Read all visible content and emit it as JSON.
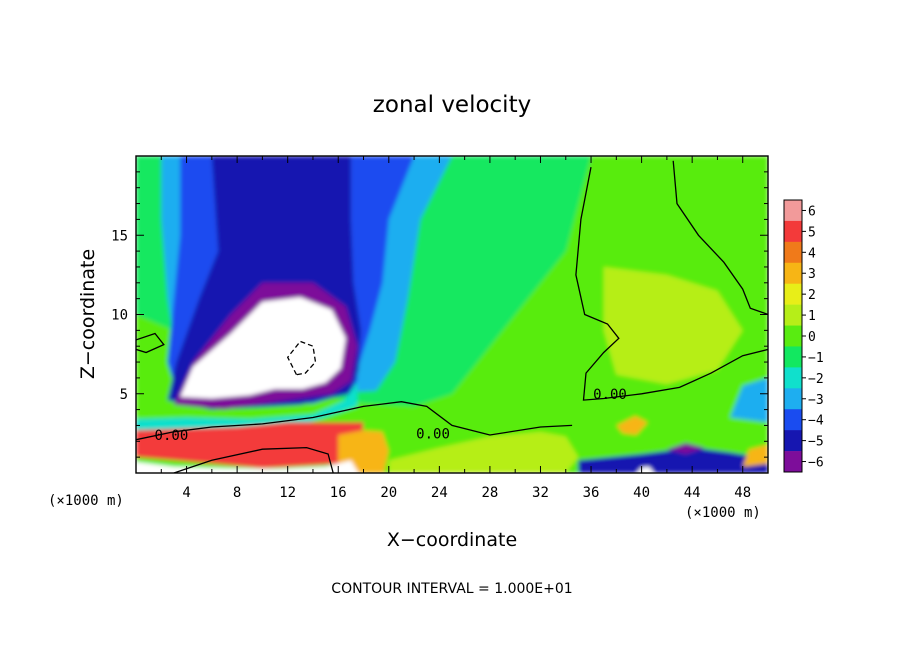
{
  "chart_data": {
    "type": "heatmap",
    "title": "zonal velocity",
    "xlabel": "X−coordinate",
    "ylabel": "Z−coordinate",
    "x_unit_left": "(×1000 m)",
    "x_unit_right": "(×1000 m)",
    "xlim": [
      0,
      50
    ],
    "ylim": [
      0,
      20
    ],
    "x_ticks": [
      4,
      8,
      12,
      16,
      20,
      24,
      28,
      32,
      36,
      40,
      44,
      48
    ],
    "x_tick_labels": [
      "4",
      "8",
      "12",
      "16",
      "20",
      "24",
      "28",
      "32",
      "36",
      "40",
      "44",
      "48"
    ],
    "y_ticks": [
      5,
      10,
      15
    ],
    "y_tick_labels": [
      "5",
      "10",
      "15"
    ],
    "colorbar": {
      "levels": [
        6,
        5,
        4,
        3,
        2,
        1,
        0,
        -1,
        -2,
        -3,
        -4,
        -5,
        -6
      ],
      "labels": [
        "6",
        "5",
        "4",
        "3",
        "2",
        "1",
        "0",
        "−1",
        "−2",
        "−3",
        "−4",
        "−5",
        "−6"
      ],
      "colors": [
        "#f29a9a",
        "#f33a3a",
        "#f07a1a",
        "#f7b515",
        "#e8ee18",
        "#b6ee18",
        "#59ec11",
        "#12e860",
        "#10e0cc",
        "#1eaef0",
        "#1a4cf0",
        "#1616b0",
        "#7d0d9a"
      ]
    },
    "contour_labels": [
      {
        "text": "0.00",
        "x": 2.8,
        "z": 2.4
      },
      {
        "text": "0.00",
        "x": 23.5,
        "z": 2.5
      },
      {
        "text": "0.00",
        "x": 37.5,
        "z": 5.0
      }
    ],
    "contours": [
      {
        "level": 0,
        "style": "solid",
        "points": [
          [
            0,
            2.1
          ],
          [
            3,
            2.6
          ],
          [
            6,
            2.9
          ],
          [
            10,
            3.1
          ],
          [
            14,
            3.5
          ],
          [
            18,
            4.2
          ],
          [
            21,
            4.5
          ],
          [
            23,
            4.2
          ],
          [
            25,
            3.0
          ],
          [
            28,
            2.4
          ],
          [
            32,
            2.9
          ],
          [
            34.5,
            3.0
          ]
        ]
      },
      {
        "level": 0,
        "style": "solid",
        "points": [
          [
            0,
            8.4
          ],
          [
            1.5,
            8.8
          ],
          [
            2.2,
            8.1
          ],
          [
            0.8,
            7.6
          ],
          [
            0,
            7.8
          ]
        ]
      },
      {
        "level": 0,
        "style": "solid",
        "points": [
          [
            36,
            19.3
          ],
          [
            35.2,
            16
          ],
          [
            34.8,
            12.5
          ],
          [
            35.5,
            10
          ],
          [
            37.3,
            9.4
          ],
          [
            38.2,
            8.5
          ],
          [
            37,
            7.6
          ],
          [
            35.6,
            6.3
          ],
          [
            35.4,
            4.6
          ],
          [
            37,
            4.7
          ],
          [
            40,
            5.0
          ],
          [
            43,
            5.4
          ],
          [
            45.5,
            6.3
          ],
          [
            48,
            7.4
          ],
          [
            50,
            7.8
          ]
        ]
      },
      {
        "level": 0,
        "style": "solid",
        "points": [
          [
            42.5,
            19.7
          ],
          [
            42.8,
            17
          ],
          [
            44.5,
            15
          ],
          [
            46.5,
            13.3
          ],
          [
            48,
            11.6
          ],
          [
            48.6,
            10.4
          ],
          [
            50,
            10.0
          ]
        ]
      },
      {
        "level": 10,
        "style": "solid",
        "points": [
          [
            3,
            0
          ],
          [
            6,
            0.8
          ],
          [
            10,
            1.5
          ],
          [
            13.5,
            1.6
          ],
          [
            15.2,
            1.2
          ],
          [
            15.6,
            0
          ]
        ]
      },
      {
        "level": -10,
        "style": "dashed",
        "points": [
          [
            12.7,
            6.2
          ],
          [
            12,
            7.3
          ],
          [
            13,
            8.3
          ],
          [
            14,
            8.0
          ],
          [
            14.2,
            7.0
          ],
          [
            13.4,
            6.3
          ],
          [
            12.7,
            6.2
          ]
        ]
      }
    ],
    "regions": [
      {
        "value": 0.3,
        "points": [
          [
            0,
            20
          ],
          [
            50,
            20
          ],
          [
            50,
            0
          ],
          [
            0,
            0
          ]
        ]
      },
      {
        "value": -1.4,
        "points": [
          [
            0,
            20
          ],
          [
            36,
            20
          ],
          [
            34,
            14
          ],
          [
            30,
            10
          ],
          [
            27,
            7
          ],
          [
            25,
            5
          ],
          [
            22,
            4.2
          ],
          [
            18,
            4.4
          ],
          [
            14,
            5.0
          ],
          [
            8,
            7.0
          ],
          [
            3,
            9.0
          ],
          [
            0,
            10
          ]
        ]
      },
      {
        "value": 1.0,
        "points": [
          [
            37,
            13
          ],
          [
            42,
            12.5
          ],
          [
            46,
            11.5
          ],
          [
            48,
            9
          ],
          [
            46,
            6.5
          ],
          [
            42,
            5.6
          ],
          [
            38,
            6.2
          ],
          [
            37,
            9
          ]
        ]
      },
      {
        "value": -2.6,
        "points": [
          [
            2,
            20
          ],
          [
            25,
            20
          ],
          [
            22.5,
            16
          ],
          [
            21.5,
            11
          ],
          [
            20.5,
            7
          ],
          [
            19,
            5.2
          ],
          [
            15,
            5.0
          ],
          [
            8,
            6.5
          ],
          [
            3.5,
            6
          ],
          [
            2.5,
            11
          ],
          [
            2,
            16
          ]
        ]
      },
      {
        "value": -3.7,
        "points": [
          [
            3.5,
            20
          ],
          [
            22,
            20
          ],
          [
            20,
            16
          ],
          [
            19.5,
            12
          ],
          [
            18.5,
            9
          ],
          [
            17.5,
            6.5
          ],
          [
            17.5,
            5.2
          ],
          [
            14,
            4.4
          ],
          [
            8,
            4.2
          ],
          [
            3.5,
            4.4
          ],
          [
            2.5,
            7
          ],
          [
            3,
            11
          ],
          [
            3.5,
            15
          ]
        ]
      },
      {
        "value": -4.7,
        "points": [
          [
            6,
            20
          ],
          [
            17,
            20
          ],
          [
            17,
            16
          ],
          [
            17.2,
            12
          ],
          [
            17.8,
            9
          ],
          [
            17.6,
            6.5
          ],
          [
            17,
            5.0
          ],
          [
            13,
            4.3
          ],
          [
            6,
            4.0
          ],
          [
            2.5,
            4.6
          ],
          [
            3.2,
            7
          ],
          [
            5,
            11
          ],
          [
            6.5,
            14
          ]
        ]
      },
      {
        "value": -5.6,
        "points": [
          [
            3,
            4.3
          ],
          [
            4.5,
            7
          ],
          [
            7.5,
            10
          ],
          [
            10,
            12.0
          ],
          [
            14,
            12.0
          ],
          [
            16.6,
            10.5
          ],
          [
            17.5,
            8
          ],
          [
            17,
            5.8
          ],
          [
            15.5,
            5.0
          ],
          [
            11,
            4.5
          ],
          [
            7,
            4.0
          ]
        ]
      },
      {
        "value": 8,
        "points": [
          [
            3.5,
            4.8
          ],
          [
            4.5,
            6.7
          ],
          [
            7.5,
            8.8
          ],
          [
            10,
            10.8
          ],
          [
            13,
            11.1
          ],
          [
            15.5,
            10.3
          ],
          [
            16.6,
            8.5
          ],
          [
            16.2,
            6.6
          ],
          [
            15,
            5.7
          ],
          [
            13.2,
            5.3
          ],
          [
            11,
            5.3
          ],
          [
            9,
            4.9
          ],
          [
            6,
            4.7
          ]
        ]
      },
      {
        "value": -2.3,
        "points": [
          [
            0,
            2.2
          ],
          [
            0,
            3.4
          ],
          [
            4,
            3.5
          ],
          [
            9,
            3.4
          ],
          [
            14,
            3.7
          ],
          [
            16.5,
            4.6
          ],
          [
            17.5,
            5.8
          ],
          [
            17.5,
            4.2
          ],
          [
            13,
            3.0
          ],
          [
            8,
            2.7
          ],
          [
            3,
            2.3
          ]
        ]
      },
      {
        "value": 4.5,
        "points": [
          [
            0,
            1.0
          ],
          [
            0,
            2.7
          ],
          [
            4,
            2.8
          ],
          [
            8,
            2.9
          ],
          [
            12,
            3.2
          ],
          [
            15,
            3.2
          ],
          [
            18,
            3.2
          ],
          [
            17.8,
            1.4
          ],
          [
            16.5,
            0.6
          ],
          [
            10,
            0.3
          ],
          [
            3,
            0.8
          ]
        ]
      },
      {
        "value": 2.8,
        "points": [
          [
            16,
            0
          ],
          [
            16,
            2.4
          ],
          [
            18,
            2.7
          ],
          [
            19.5,
            2.6
          ],
          [
            20,
            1.4
          ],
          [
            19.6,
            0
          ]
        ]
      },
      {
        "value": 8,
        "points": [
          [
            0,
            0
          ],
          [
            0,
            0.7
          ],
          [
            3,
            0.4
          ],
          [
            7,
            0.3
          ],
          [
            11,
            0.25
          ],
          [
            15,
            0.4
          ],
          [
            17,
            0.8
          ],
          [
            17.6,
            0
          ]
        ]
      },
      {
        "value": 0.9,
        "points": [
          [
            20,
            0.8
          ],
          [
            24,
            1.6
          ],
          [
            28,
            2.3
          ],
          [
            32,
            2.6
          ],
          [
            34,
            2.3
          ],
          [
            35,
            1.0
          ],
          [
            34,
            0
          ],
          [
            20,
            0
          ]
        ]
      },
      {
        "value": 3.0,
        "points": [
          [
            38,
            3.0
          ],
          [
            39.5,
            3.6
          ],
          [
            40.5,
            3.2
          ],
          [
            39.6,
            2.4
          ],
          [
            38.5,
            2.5
          ]
        ]
      },
      {
        "value": -4.7,
        "points": [
          [
            35,
            0.8
          ],
          [
            40,
            1.2
          ],
          [
            44,
            1.6
          ],
          [
            47,
            1.3
          ],
          [
            50,
            0.9
          ],
          [
            50,
            0
          ],
          [
            35,
            0
          ]
        ]
      },
      {
        "value": -6.0,
        "points": [
          [
            42,
            1.5
          ],
          [
            43.5,
            1.9
          ],
          [
            45,
            1.6
          ],
          [
            43.5,
            1.2
          ]
        ]
      },
      {
        "value": 8,
        "points": [
          [
            39.6,
            0
          ],
          [
            40,
            0.35
          ],
          [
            40.6,
            0.4
          ],
          [
            41,
            0
          ]
        ]
      },
      {
        "value": -2.6,
        "points": [
          [
            47,
            3.5
          ],
          [
            50,
            3.2
          ],
          [
            50,
            6
          ],
          [
            48,
            5.5
          ]
        ]
      },
      {
        "value": 3.2,
        "points": [
          [
            48,
            0.4
          ],
          [
            50,
            0.6
          ],
          [
            50,
            1.8
          ],
          [
            48.5,
            1.5
          ]
        ]
      }
    ]
  },
  "footer": {
    "contour_interval": "CONTOUR INTERVAL = 1.000E+01"
  }
}
